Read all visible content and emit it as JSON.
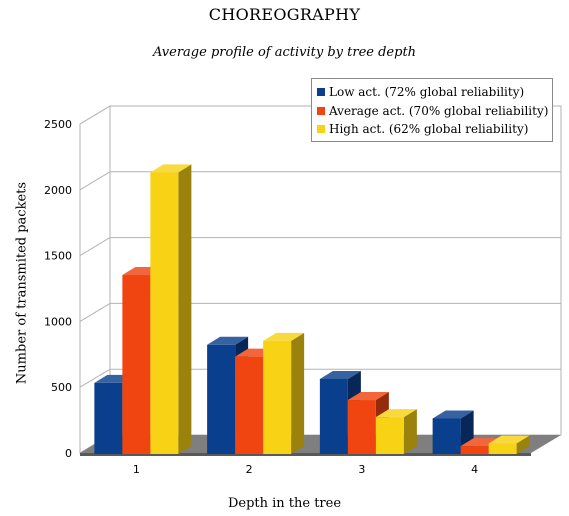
{
  "chart_data": {
    "type": "bar",
    "title": "CHOREOGRAPHY",
    "subtitle": "Average profile of activity by tree depth",
    "xlabel": "Depth in the tree",
    "ylabel": "Number of transmited packets",
    "categories": [
      "1",
      "2",
      "3",
      "4"
    ],
    "ylim": [
      0,
      2500
    ],
    "yticks": [
      0,
      500,
      1000,
      1500,
      2000,
      2500
    ],
    "grid": true,
    "legend_position": "top-right",
    "style": "3d",
    "series": [
      {
        "name": "Low act. (72% global reliability)",
        "values": [
          540,
          830,
          570,
          270
        ],
        "color": "#0a3f8e"
      },
      {
        "name": "Average act. (70% global reliability)",
        "values": [
          1360,
          740,
          410,
          60
        ],
        "color": "#f04510"
      },
      {
        "name": "High act. (62% global reliability)",
        "values": [
          2140,
          860,
          280,
          80
        ],
        "color": "#f8d214"
      }
    ]
  }
}
